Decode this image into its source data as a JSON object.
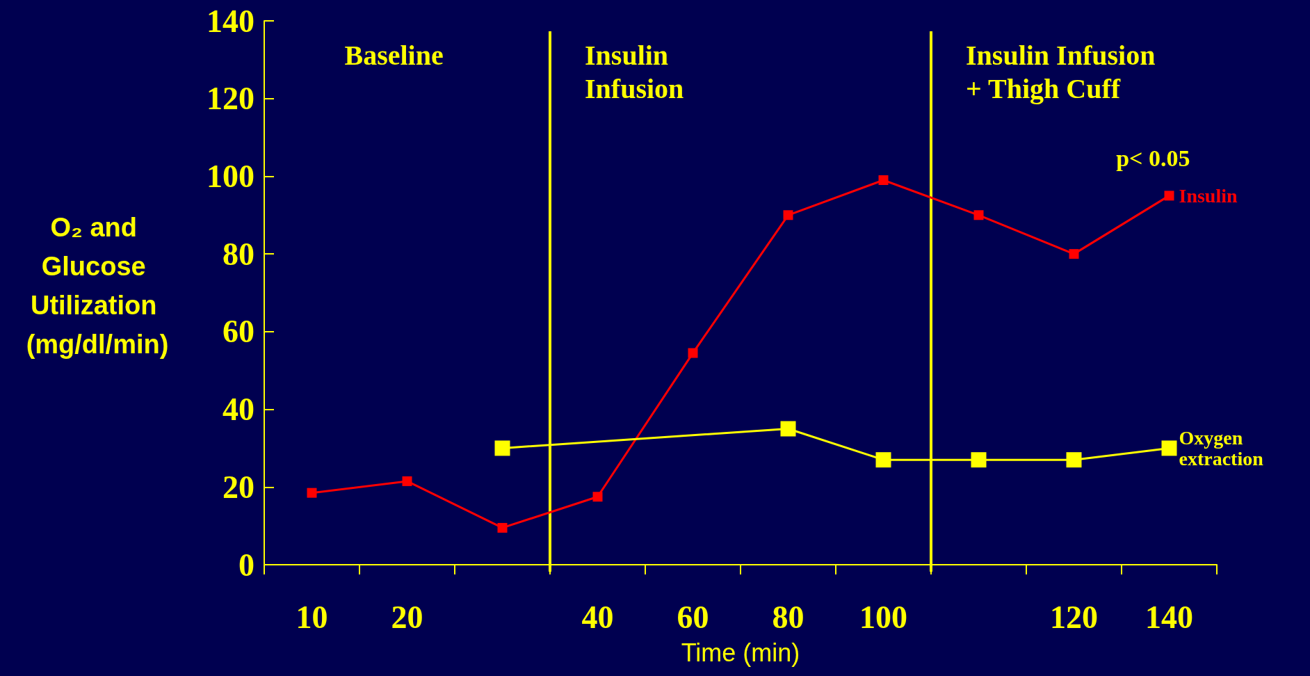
{
  "chart_data": {
    "type": "line",
    "ylabel": "O₂ and Glucose Utilization (mg/dl/min)",
    "xlabel": "Time (min)",
    "categories": [
      "10",
      "20",
      null,
      "40",
      "60",
      "80",
      "100",
      null,
      "120",
      "140"
    ],
    "series": [
      {
        "name": "Insulin",
        "color": "#ff0000",
        "values": [
          18.5,
          21.5,
          9.5,
          17.5,
          54.5,
          90,
          99,
          90,
          80,
          95
        ]
      },
      {
        "name": "Oxygen extraction",
        "color": "#ffff00",
        "values": [
          null,
          null,
          30,
          null,
          null,
          35,
          27,
          27,
          27,
          30
        ]
      }
    ],
    "ylim": [
      0,
      140
    ],
    "yticks": [
      0,
      20,
      40,
      60,
      80,
      100,
      120,
      140
    ],
    "grid": false,
    "legend": false,
    "marker": "square",
    "line_style": "solid",
    "annotations": [
      "Baseline",
      "Insulin Infusion",
      "Insulin Infusion + Thigh Cuff",
      {
        "text": "p< 0.05",
        "x": "140",
        "y": 95
      }
    ]
  }
}
